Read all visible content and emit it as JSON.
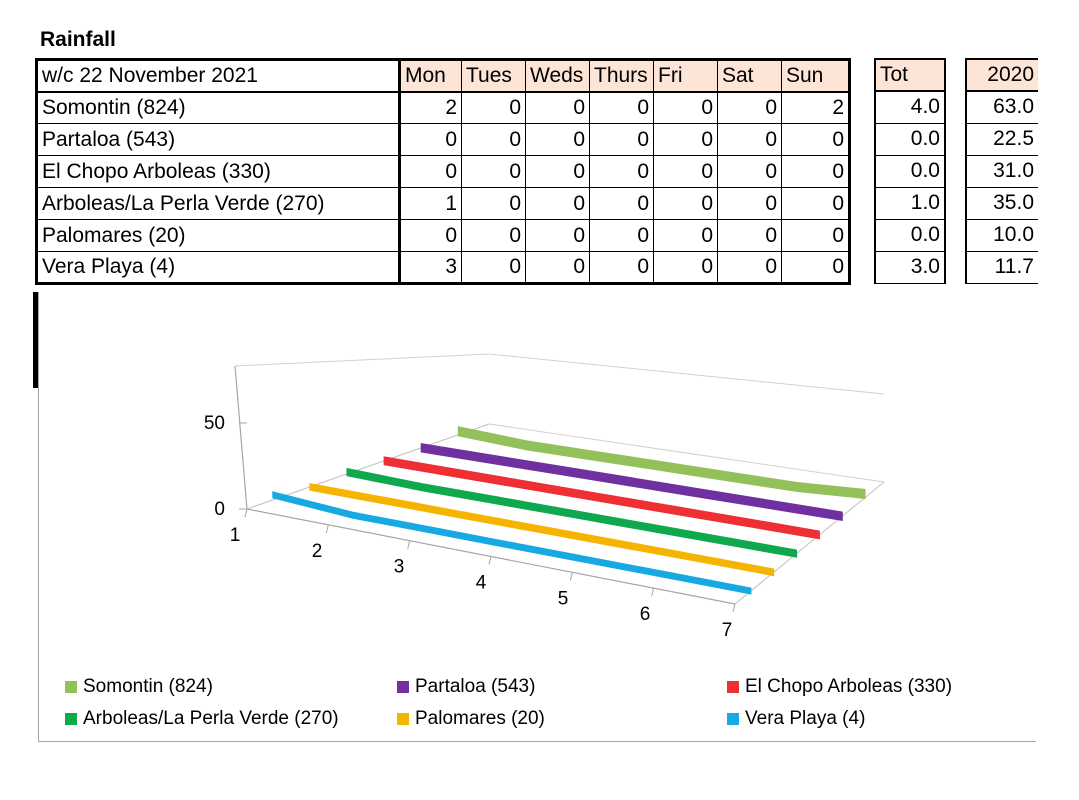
{
  "page": {
    "title": "Rainfall"
  },
  "table": {
    "header_label": "w/c 22 November 2021",
    "days": [
      "Mon",
      "Tues",
      "Weds",
      "Thurs",
      "Fri",
      "Sat",
      "Sun"
    ],
    "tot_label": "Tot",
    "year_label": "2020",
    "rows": [
      {
        "name": "Somontin (824)",
        "values": [
          "2",
          "0",
          "0",
          "0",
          "0",
          "0",
          "2"
        ],
        "tot": "4.0",
        "year": "63.0"
      },
      {
        "name": "Partaloa (543)",
        "values": [
          "0",
          "0",
          "0",
          "0",
          "0",
          "0",
          "0"
        ],
        "tot": "0.0",
        "year": "22.5"
      },
      {
        "name": "El Chopo Arboleas (330)",
        "values": [
          "0",
          "0",
          "0",
          "0",
          "0",
          "0",
          "0"
        ],
        "tot": "0.0",
        "year": "31.0"
      },
      {
        "name": "Arboleas/La Perla Verde (270)",
        "values": [
          "1",
          "0",
          "0",
          "0",
          "0",
          "0",
          "0"
        ],
        "tot": "1.0",
        "year": "35.0"
      },
      {
        "name": "Palomares (20)",
        "values": [
          "0",
          "0",
          "0",
          "0",
          "0",
          "0",
          "0"
        ],
        "tot": "0.0",
        "year": "10.0"
      },
      {
        "name": "Vera Playa (4)",
        "values": [
          "3",
          "0",
          "0",
          "0",
          "0",
          "0",
          "0"
        ],
        "tot": "3.0",
        "year": "11.7"
      }
    ]
  },
  "chart_data": {
    "type": "area",
    "categories": [
      "1",
      "2",
      "3",
      "4",
      "5",
      "6",
      "7"
    ],
    "yticks": [
      "0",
      "50"
    ],
    "ylim": [
      0,
      50
    ],
    "legend_position": "bottom",
    "series": [
      {
        "name": "Somontin (824)",
        "values": [
          2,
          0,
          0,
          0,
          0,
          0,
          2
        ],
        "color": "#92c05a"
      },
      {
        "name": "Partaloa (543)",
        "values": [
          0,
          0,
          0,
          0,
          0,
          0,
          0
        ],
        "color": "#7030a0"
      },
      {
        "name": "El Chopo Arboleas (330)",
        "values": [
          0,
          0,
          0,
          0,
          0,
          0,
          0
        ],
        "color": "#ee2f34"
      },
      {
        "name": "Arboleas/La Perla Verde (270)",
        "values": [
          1,
          0,
          0,
          0,
          0,
          0,
          0
        ],
        "color": "#10a84f"
      },
      {
        "name": "Palomares (20)",
        "values": [
          0,
          0,
          0,
          0,
          0,
          0,
          0
        ],
        "color": "#f4b400"
      },
      {
        "name": "Vera Playa (4)",
        "values": [
          3,
          0,
          0,
          0,
          0,
          0,
          0
        ],
        "color": "#17a9e1"
      }
    ]
  }
}
